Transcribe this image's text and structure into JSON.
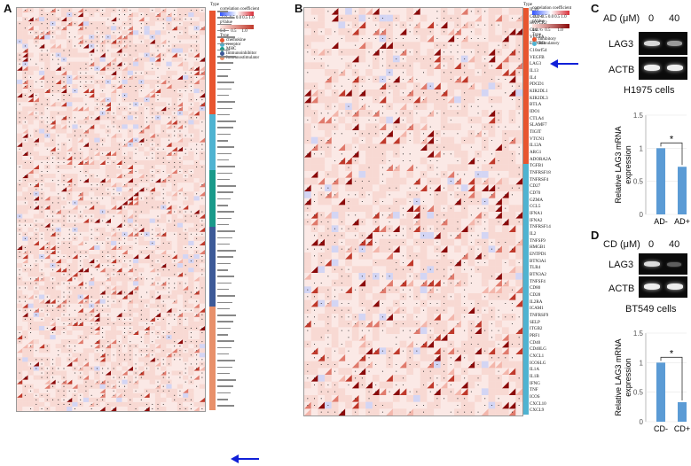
{
  "panels": {
    "A": {
      "letter": "A",
      "legend": {
        "corr_title": "correlation coefficient",
        "corr_ticks": [
          "-1.0",
          "-0.5",
          "0.0",
          "0.5",
          "1.0"
        ],
        "pval_title": "pValue",
        "pval_ticks": [
          "0.0",
          "0.5",
          "1.0"
        ],
        "type_title": "Type",
        "types": [
          {
            "label": "chemokine",
            "color": "#e8552f"
          },
          {
            "label": "receptor",
            "color": "#4fb3d1"
          },
          {
            "label": "MHC",
            "color": "#1a9a8a"
          },
          {
            "label": "Immunoinhibitor",
            "color": "#3d5a98"
          },
          {
            "label": "Immunostimulator",
            "color": "#e8906a"
          }
        ]
      },
      "type_header": "Type",
      "type_stripe": [
        {
          "color": "#e8552f",
          "frac": 0.26
        },
        {
          "color": "#4fb3d1",
          "frac": 0.14
        },
        {
          "color": "#1a9a8a",
          "frac": 0.14
        },
        {
          "color": "#3d5a98",
          "frac": 0.2
        },
        {
          "color": "#e8906a",
          "frac": 0.26
        }
      ]
    },
    "B": {
      "letter": "B",
      "legend": {
        "corr_title": "correlation coefficient",
        "corr_ticks": [
          "-1.0",
          "-0.5",
          "0.0",
          "0.5",
          "1.0"
        ],
        "pval_title": "pValue",
        "pval_ticks": [
          "0.0",
          "0.5",
          "1.0"
        ],
        "type_title": "Type",
        "types": [
          {
            "label": "Inhibitory",
            "color": "#e8552f"
          },
          {
            "label": "Stimulatory",
            "color": "#4fb3d1"
          }
        ]
      },
      "type_header": "Type",
      "genes": [
        "IL10",
        "CD274",
        "HAVCR2",
        "CD276",
        "VEGFA",
        "EDNRB",
        "C10orf54",
        "VEGFB",
        "LAG3",
        "IL13",
        "IL4",
        "PDCD1",
        "KIR2DL1",
        "KIR2DL3",
        "BTLA",
        "IDO1",
        "CTLA4",
        "SLAMF7",
        "TIGIT",
        "VTCN1",
        "IL12A",
        "ARG1",
        "ADORA2A",
        "TGFB1",
        "TNFRSF18",
        "TNFRSF4",
        "CD27",
        "CD70",
        "GZMA",
        "CCL5",
        "IFNA1",
        "IFNA2",
        "TNFRSF14",
        "IL2",
        "TNFSF9",
        "HMGB1",
        "ENTPD1",
        "BTN3A1",
        "TLR4",
        "BTN3A2",
        "TNFSF4",
        "CD80",
        "CD28",
        "IL2RA",
        "ICAM1",
        "TNFRSF9",
        "SELP",
        "ITGB2",
        "PRF1",
        "CD40",
        "CD40LG",
        "CXCL1",
        "ICOSLG",
        "IL1A",
        "IL1B",
        "IFNG",
        "TNF",
        "ICOS",
        "CXCL10",
        "CXCL9"
      ],
      "stripe_split_index": 23
    },
    "C": {
      "letter": "C",
      "treatment_label": "AD (μM)",
      "doses": [
        "0",
        "40"
      ],
      "bands": [
        "LAG3",
        "ACTB"
      ],
      "cell_line": "H1975 cells",
      "chart_data": {
        "type": "bar",
        "categories": [
          "AD-",
          "AD+"
        ],
        "values": [
          1.0,
          0.72
        ],
        "ylabel": "Relative LAG3 mRNA expression",
        "ylim": [
          0,
          1.5
        ],
        "yticks": [
          "0",
          "0.5",
          "1",
          "1.5"
        ],
        "significance": "*",
        "bar_color": "#5b9bd5"
      }
    },
    "D": {
      "letter": "D",
      "treatment_label": "CD (μM)",
      "doses": [
        "0",
        "40"
      ],
      "bands": [
        "LAG3",
        "ACTB"
      ],
      "cell_line": "BT549 cells",
      "chart_data": {
        "type": "bar",
        "categories": [
          "CD-",
          "CD+"
        ],
        "values": [
          1.0,
          0.33
        ],
        "ylabel": "Relative LAG3 mRNA expression",
        "ylim": [
          0,
          1.5
        ],
        "yticks": [
          "0",
          "0.5",
          "1",
          "1.5"
        ],
        "significance": "*",
        "bar_color": "#5b9bd5"
      }
    }
  }
}
